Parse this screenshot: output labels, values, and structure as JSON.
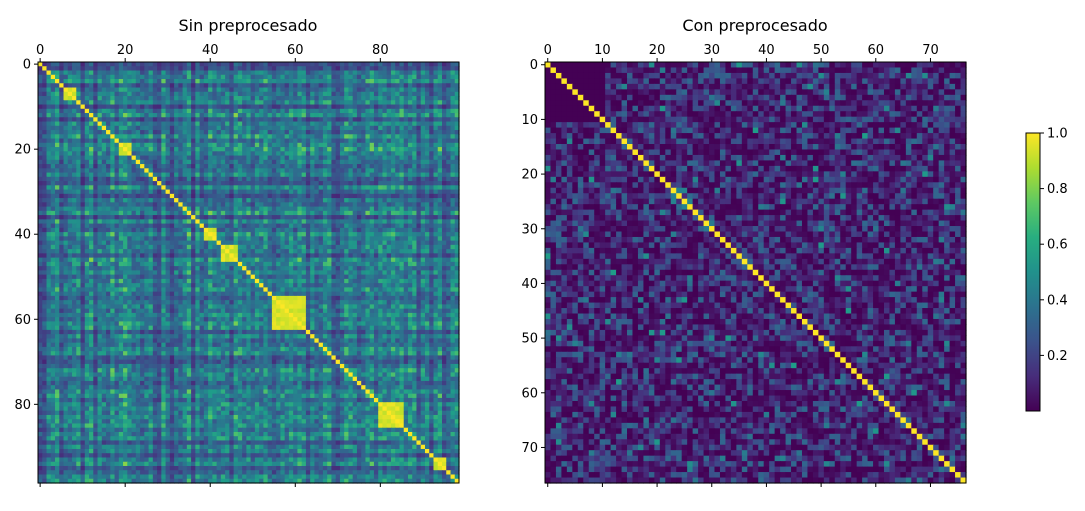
{
  "chart_data": [
    {
      "type": "heatmap",
      "title": "Sin preprocesado",
      "size": 99,
      "x_ticks": [
        0,
        20,
        40,
        60,
        80
      ],
      "y_ticks": [
        0,
        20,
        40,
        60,
        80
      ],
      "xlim": [
        -0.5,
        98.5
      ],
      "ylim": [
        98.5,
        -0.5
      ],
      "x_tick_position": "top",
      "diagonal_value": 1.0,
      "value_range": [
        0.0,
        1.0
      ],
      "high_correlation_blocks": [
        [
          6,
          8
        ],
        [
          19,
          21
        ],
        [
          39,
          41
        ],
        [
          43,
          46
        ],
        [
          55,
          62
        ],
        [
          80,
          85
        ],
        [
          93,
          95
        ]
      ],
      "description_values": "symmetric correlation matrix, many off-diagonal values between 0.2 and 0.7"
    },
    {
      "type": "heatmap",
      "title": "Con preprocesado",
      "size": 77,
      "x_ticks": [
        0,
        10,
        20,
        30,
        40,
        50,
        60,
        70
      ],
      "y_ticks": [
        0,
        10,
        20,
        30,
        40,
        50,
        60,
        70
      ],
      "xlim": [
        -0.5,
        76.5
      ],
      "ylim": [
        76.5,
        -0.5
      ],
      "x_tick_position": "top",
      "diagonal_value": 1.0,
      "value_range": [
        0.0,
        1.0
      ],
      "near_zero_block": [
        0,
        10
      ],
      "description_values": "symmetric correlation matrix, off-diagonal values mostly below 0.3"
    }
  ],
  "colorbar": {
    "ticks": [
      "0.2",
      "0.4",
      "0.6",
      "0.8",
      "1.0"
    ],
    "tick_values": [
      0.2,
      0.4,
      0.6,
      0.8,
      1.0
    ],
    "range": [
      0.0,
      1.0
    ],
    "colormap": "viridis"
  }
}
